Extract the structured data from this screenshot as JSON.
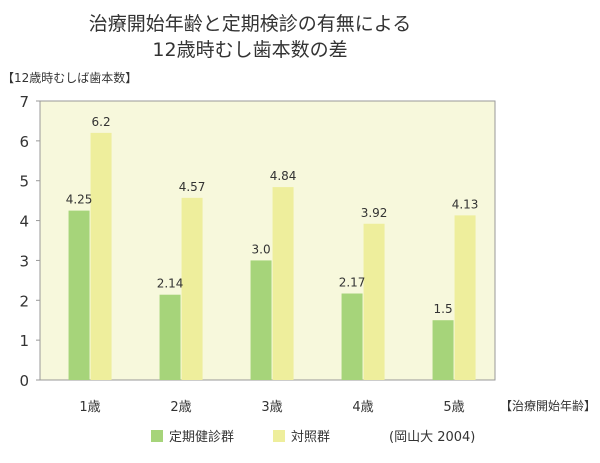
{
  "chart_data": {
    "type": "bar",
    "title": "治療開始年齢と定期検診の有無による",
    "subtitle": "12歳時むし歯本数の差",
    "ylabel": "【12歳時むしば歯本数】",
    "xlabel": "【治療開始年齢】",
    "categories": [
      "1歳",
      "2歳",
      "3歳",
      "4歳",
      "5歳"
    ],
    "series": [
      {
        "name": "定期健診群",
        "values": [
          4.25,
          2.14,
          3.0,
          2.17,
          1.5
        ],
        "labels": [
          "4.25",
          "2.14",
          "3.0",
          "2.17",
          "1.5"
        ],
        "color": "#a6d47a"
      },
      {
        "name": "対照群",
        "values": [
          6.2,
          4.57,
          4.84,
          3.92,
          4.13
        ],
        "labels": [
          "6.2",
          "4.57",
          "4.84",
          "3.92",
          "4.13"
        ],
        "color": "#eeee9c"
      }
    ],
    "ylim": [
      0,
      7
    ],
    "yticks": [
      "0",
      "1",
      "2",
      "3",
      "4",
      "5",
      "6",
      "7"
    ],
    "grid": false,
    "plot_background": "#f7f8dc",
    "legend_position": "bottom"
  },
  "source": "(岡山大 2004)"
}
